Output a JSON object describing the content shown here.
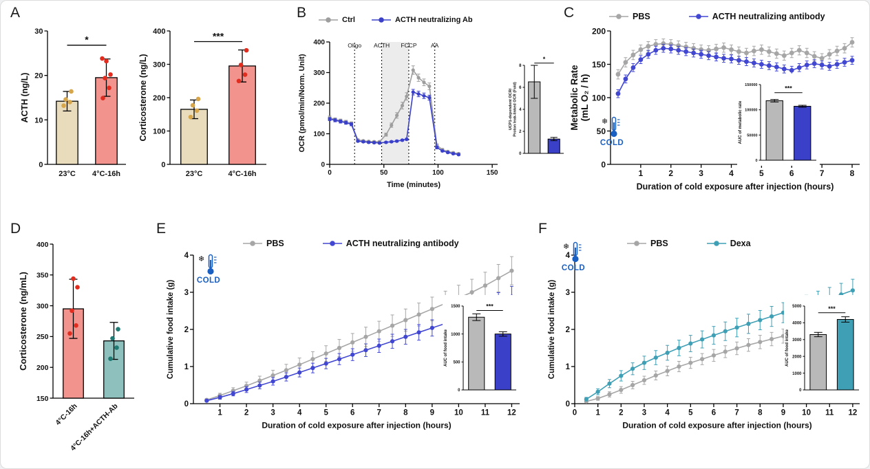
{
  "panels": {
    "A": {
      "letter": "A"
    },
    "B": {
      "letter": "B"
    },
    "C": {
      "letter": "C"
    },
    "D": {
      "letter": "D"
    },
    "E": {
      "letter": "E"
    },
    "F": {
      "letter": "F"
    }
  },
  "cold_label": "COLD",
  "colors": {
    "ctrl_gray": "#9e9e9e",
    "treatment_blue": "#3f45cc",
    "dexa_teal": "#3f9fb5",
    "tan_bar": "#e9dcbd",
    "salmon_bar": "#f2938d",
    "teal_bar": "#8ec1bd",
    "inset_gray_bar": "#b9b9b9",
    "cold_blue": "#1a5fc2"
  },
  "chart_data": [
    {
      "id": "acth_bar",
      "type": "bar",
      "ylabel": "ACTH (ng/L)",
      "categories": [
        "23°C",
        "4°C-16h"
      ],
      "values": [
        14.2,
        19.5
      ],
      "errors": [
        2.2,
        4.2
      ],
      "ylim": [
        0,
        30
      ],
      "yticks": [
        0,
        10,
        20,
        30
      ],
      "bar_colors": [
        "#e9dcbd",
        "#f2938d"
      ],
      "dot_colors": [
        "#d7a64b",
        "#e02d1f"
      ],
      "points": [
        [
          13.2,
          14.0,
          14.6,
          16.4
        ],
        [
          14.9,
          17.2,
          19.4,
          20.2,
          23.2,
          23.8
        ]
      ],
      "sig": {
        "label": "*",
        "y": 26.8
      }
    },
    {
      "id": "cort_bar",
      "type": "bar",
      "ylabel": "Corticosterone (ng/L)",
      "categories": [
        "23°C",
        "4°C-16h"
      ],
      "values": [
        165,
        295
      ],
      "errors": [
        28,
        48
      ],
      "ylim": [
        0,
        400
      ],
      "yticks": [
        0,
        100,
        200,
        300,
        400
      ],
      "bar_colors": [
        "#e9dcbd",
        "#f2938d"
      ],
      "dot_colors": [
        "#d7a64b",
        "#e02d1f"
      ],
      "points": [
        [
          142,
          161,
          177,
          196
        ],
        [
          250,
          269,
          298,
          342
        ]
      ],
      "sig": {
        "label": "***",
        "y": 368
      }
    },
    {
      "id": "ocr_line",
      "type": "line",
      "xlabel": "Time (minutes)",
      "ylabel": "OCR (pmol/min/Norm. Unit)",
      "xlim": [
        0,
        155
      ],
      "ylim": [
        0,
        400
      ],
      "xticks": [
        0,
        50,
        100,
        150
      ],
      "yticks": [
        0,
        100,
        200,
        300,
        400
      ],
      "vlines": [
        {
          "x": 23,
          "label": "Oligo"
        },
        {
          "x": 48,
          "label": "ACTH"
        },
        {
          "x": 73,
          "label": "FCCP"
        },
        {
          "x": 97,
          "label": "AA"
        }
      ],
      "shade": {
        "x1": 48,
        "x2": 73
      },
      "legend_position": "top",
      "series": [
        {
          "name": "Ctrl",
          "color": "#9e9e9e",
          "x": [
            0,
            5,
            10,
            15,
            20,
            26,
            31,
            36,
            41,
            46,
            52,
            57,
            62,
            67,
            71,
            77,
            82,
            87,
            92,
            99,
            104,
            109,
            114,
            119
          ],
          "y": [
            152,
            147,
            143,
            139,
            134,
            80,
            77,
            75,
            74,
            74,
            97,
            128,
            160,
            192,
            222,
            308,
            283,
            268,
            255,
            62,
            48,
            42,
            38,
            35
          ],
          "err": [
            6,
            5,
            5,
            5,
            5,
            3,
            3,
            3,
            3,
            3,
            5,
            7,
            9,
            11,
            12,
            14,
            12,
            11,
            11,
            5,
            4,
            3,
            3,
            3
          ]
        },
        {
          "name": "ACTH neutralizing Ab",
          "color": "#3a40c8",
          "x": [
            0,
            5,
            10,
            15,
            20,
            26,
            31,
            36,
            41,
            46,
            52,
            57,
            62,
            67,
            71,
            77,
            82,
            87,
            92,
            99,
            104,
            109,
            114,
            119
          ],
          "y": [
            148,
            144,
            140,
            136,
            131,
            76,
            74,
            72,
            71,
            70,
            72,
            74,
            76,
            79,
            82,
            236,
            230,
            224,
            218,
            55,
            44,
            39,
            35,
            32
          ],
          "err": [
            5,
            5,
            5,
            5,
            5,
            3,
            3,
            3,
            3,
            3,
            3,
            3,
            3,
            3,
            3,
            9,
            9,
            9,
            8,
            4,
            3,
            3,
            3,
            3
          ]
        }
      ]
    },
    {
      "id": "ocr_inset",
      "type": "bar",
      "ylabel": "UCP1-dependent OCR/\nProton leak-linked OCR (Fold)",
      "categories": [
        "",
        ""
      ],
      "values": [
        6.5,
        1.3
      ],
      "errors": [
        1.5,
        0.15
      ],
      "ylim": [
        0,
        8
      ],
      "yticks": [
        0,
        2,
        4,
        6,
        8
      ],
      "bar_colors": [
        "#b9b9b9",
        "#3a40c8"
      ],
      "sig": {
        "label": "*",
        "y": 8.2
      }
    },
    {
      "id": "metabolic_line",
      "type": "line",
      "xlabel": "Duration of cold exposure after injection (hours)",
      "ylabel": "Metabolic Rate\n(mL O₂ / h)",
      "xlim": [
        0,
        8.25
      ],
      "ylim": [
        0,
        200
      ],
      "xticks": [
        1,
        2,
        3,
        4,
        5,
        6,
        7,
        8
      ],
      "yticks": [
        0,
        50,
        100,
        150,
        200
      ],
      "legend_position": "top",
      "series": [
        {
          "name": "PBS",
          "color": "#a6a6a6",
          "x": [
            0.25,
            0.5,
            0.75,
            1,
            1.25,
            1.5,
            1.75,
            2,
            2.25,
            2.5,
            2.75,
            3,
            3.25,
            3.5,
            3.75,
            4,
            4.25,
            4.5,
            4.75,
            5,
            5.25,
            5.5,
            5.75,
            6,
            6.25,
            6.5,
            6.75,
            7,
            7.25,
            7.5,
            7.75,
            8
          ],
          "y": [
            135,
            153,
            164,
            172,
            177,
            180,
            181,
            180,
            178,
            176,
            174,
            172,
            171,
            173,
            175,
            172,
            169,
            167,
            170,
            172,
            169,
            166,
            163,
            167,
            171,
            167,
            162,
            159,
            165,
            170,
            174,
            183
          ],
          "err": 7
        },
        {
          "name": "ACTH neutralizing antibody",
          "color": "#4247d2",
          "x": [
            0.25,
            0.5,
            0.75,
            1,
            1.25,
            1.5,
            1.75,
            2,
            2.25,
            2.5,
            2.75,
            3,
            3.25,
            3.5,
            3.75,
            4,
            4.25,
            4.5,
            4.75,
            5,
            5.25,
            5.5,
            5.75,
            6,
            6.25,
            6.5,
            6.75,
            7,
            7.25,
            7.5,
            7.75,
            8
          ],
          "y": [
            106,
            128,
            145,
            157,
            165,
            171,
            174,
            173,
            171,
            169,
            167,
            165,
            163,
            161,
            159,
            158,
            156,
            154,
            152,
            150,
            148,
            146,
            143,
            141,
            145,
            149,
            151,
            149,
            147,
            150,
            153,
            156
          ],
          "err": 6
        }
      ]
    },
    {
      "id": "metabolic_inset",
      "type": "bar",
      "ylabel": "AUC of metabolic rate",
      "categories": [
        "",
        ""
      ],
      "values": [
        118000,
        107000
      ],
      "errors": [
        2500,
        2000
      ],
      "ylim": [
        0,
        150000
      ],
      "yticks": [
        0,
        50000,
        100000,
        150000
      ],
      "bar_colors": [
        "#b9b9b9",
        "#3a40c8"
      ],
      "sig": {
        "label": "***",
        "y": 134000
      }
    },
    {
      "id": "cort_d_bar",
      "type": "bar",
      "ylabel": "Corticosterone (ng/mL)",
      "categories": [
        "4°C-16h",
        "4°C-16h+ACTH-Ab"
      ],
      "values": [
        295,
        243
      ],
      "errors": [
        48,
        30
      ],
      "ylim": [
        150,
        400
      ],
      "yticks": [
        150,
        200,
        250,
        300,
        350,
        400
      ],
      "bar_colors": [
        "#f2938d",
        "#8ec1bd"
      ],
      "dot_colors": [
        "#e02d1f",
        "#1f7a74"
      ],
      "points": [
        [
          255,
          268,
          292,
          330,
          344
        ],
        [
          214,
          232,
          247,
          262
        ]
      ]
    },
    {
      "id": "food_e_line",
      "type": "line",
      "xlabel": "Duration of cold exposure after injection (hours)",
      "ylabel": "Cumulative food intake (g)",
      "xlim": [
        0,
        12.3
      ],
      "ylim": [
        0,
        4
      ],
      "xticks": [
        1,
        2,
        3,
        4,
        5,
        6,
        7,
        8,
        9,
        10,
        11,
        12
      ],
      "yticks": [
        0,
        1,
        2,
        3,
        4
      ],
      "legend_position": "top",
      "series": [
        {
          "name": "PBS",
          "color": "#a6a6a6",
          "x": [
            0.5,
            1,
            1.5,
            2,
            2.5,
            3,
            3.5,
            4,
            4.5,
            5,
            5.5,
            6,
            6.5,
            7,
            7.5,
            8,
            8.5,
            9,
            9.5,
            10,
            10.5,
            11,
            11.5,
            12
          ],
          "y": [
            0.1,
            0.22,
            0.35,
            0.48,
            0.62,
            0.76,
            0.9,
            1.05,
            1.2,
            1.35,
            1.5,
            1.65,
            1.8,
            1.95,
            2.1,
            2.25,
            2.4,
            2.55,
            2.7,
            2.85,
            3.0,
            3.18,
            3.38,
            3.58
          ],
          "err": [
            0.04,
            0.06,
            0.08,
            0.1,
            0.12,
            0.14,
            0.16,
            0.18,
            0.2,
            0.21,
            0.23,
            0.24,
            0.26,
            0.27,
            0.29,
            0.3,
            0.31,
            0.32,
            0.33,
            0.34,
            0.35,
            0.36,
            0.37,
            0.38
          ]
        },
        {
          "name": "ACTH neutralizing antibody",
          "color": "#4247d2",
          "x": [
            0.5,
            1,
            1.5,
            2,
            2.5,
            3,
            3.5,
            4,
            4.5,
            5,
            5.5,
            6,
            6.5,
            7,
            7.5,
            8,
            8.5,
            9,
            9.5,
            10,
            10.5,
            11,
            11.5,
            12
          ],
          "y": [
            0.08,
            0.17,
            0.27,
            0.38,
            0.49,
            0.6,
            0.72,
            0.84,
            0.96,
            1.08,
            1.2,
            1.32,
            1.44,
            1.56,
            1.68,
            1.8,
            1.92,
            2.04,
            2.16,
            2.3,
            2.44,
            2.58,
            2.72,
            2.88
          ],
          "err": [
            0.03,
            0.05,
            0.06,
            0.08,
            0.09,
            0.1,
            0.11,
            0.12,
            0.13,
            0.14,
            0.15,
            0.16,
            0.17,
            0.18,
            0.19,
            0.2,
            0.21,
            0.22,
            0.23,
            0.24,
            0.25,
            0.26,
            0.27,
            0.28
          ]
        }
      ]
    },
    {
      "id": "food_e_inset",
      "type": "bar",
      "ylabel": "AUC of food intake",
      "categories": [
        "",
        ""
      ],
      "values": [
        1300,
        1000
      ],
      "errors": [
        60,
        40
      ],
      "ylim": [
        0,
        1500
      ],
      "yticks": [
        0,
        500,
        1000,
        1500
      ],
      "bar_colors": [
        "#b9b9b9",
        "#3a40c8"
      ],
      "sig": {
        "label": "***",
        "y": 1420
      }
    },
    {
      "id": "food_f_line",
      "type": "line",
      "xlabel": "Duration of cold exposure after injection (hours)",
      "ylabel": "Cumulative food intake (g)",
      "xlim": [
        0,
        12.3
      ],
      "ylim": [
        0,
        4
      ],
      "xticks": [
        0,
        1,
        2,
        3,
        4,
        5,
        6,
        7,
        8,
        9,
        10,
        11,
        12
      ],
      "yticks": [
        0,
        1,
        2,
        3,
        4
      ],
      "legend_position": "top",
      "series": [
        {
          "name": "PBS",
          "color": "#a6a6a6",
          "x": [
            0.5,
            1,
            1.5,
            2,
            2.5,
            3,
            3.5,
            4,
            4.5,
            5,
            5.5,
            6,
            6.5,
            7,
            7.5,
            8,
            8.5,
            9,
            9.5,
            10,
            10.5,
            11,
            11.5,
            12
          ],
          "y": [
            0.06,
            0.14,
            0.25,
            0.37,
            0.5,
            0.63,
            0.76,
            0.88,
            1.0,
            1.1,
            1.2,
            1.3,
            1.4,
            1.49,
            1.58,
            1.66,
            1.74,
            1.82,
            1.9,
            1.99,
            2.08,
            2.18,
            2.28,
            2.4
          ],
          "err": [
            0.03,
            0.05,
            0.07,
            0.09,
            0.1,
            0.11,
            0.12,
            0.13,
            0.14,
            0.15,
            0.15,
            0.16,
            0.16,
            0.17,
            0.17,
            0.18,
            0.18,
            0.19,
            0.19,
            0.2,
            0.2,
            0.21,
            0.21,
            0.22
          ]
        },
        {
          "name": "Dexa",
          "color": "#3f9fb5",
          "x": [
            0.5,
            1,
            1.5,
            2,
            2.5,
            3,
            3.5,
            4,
            4.5,
            5,
            5.5,
            6,
            6.5,
            7,
            7.5,
            8,
            8.5,
            9,
            9.5,
            10,
            10.5,
            11,
            11.5,
            12
          ],
          "y": [
            0.12,
            0.32,
            0.54,
            0.75,
            0.94,
            1.1,
            1.24,
            1.37,
            1.5,
            1.62,
            1.73,
            1.84,
            1.95,
            2.05,
            2.15,
            2.25,
            2.35,
            2.45,
            2.55,
            2.64,
            2.74,
            2.84,
            2.94,
            3.05
          ],
          "err": [
            0.05,
            0.08,
            0.11,
            0.14,
            0.16,
            0.18,
            0.19,
            0.2,
            0.21,
            0.22,
            0.23,
            0.24,
            0.25,
            0.25,
            0.26,
            0.26,
            0.27,
            0.27,
            0.28,
            0.28,
            0.29,
            0.29,
            0.3,
            0.3
          ]
        }
      ]
    },
    {
      "id": "food_f_inset",
      "type": "bar",
      "ylabel": "AUC of food intake",
      "categories": [
        "",
        ""
      ],
      "values": [
        3300,
        4200
      ],
      "errors": [
        130,
        160
      ],
      "ylim": [
        0,
        5000
      ],
      "yticks": [
        0,
        1000,
        2000,
        3000,
        4000,
        5000
      ],
      "bar_colors": [
        "#b9b9b9",
        "#3f9fb5"
      ],
      "sig": {
        "label": "***",
        "y": 4600
      }
    }
  ]
}
